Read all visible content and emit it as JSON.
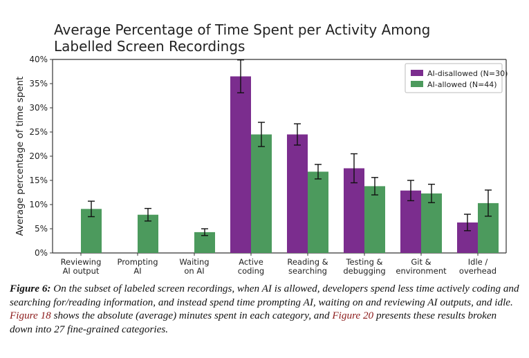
{
  "chart_data": {
    "type": "bar",
    "title": "Average Percentage of Time Spent per Activity Among Labelled Screen Recordings",
    "title_lines": [
      "Average Percentage of Time Spent per Activity Among",
      "Labelled Screen Recordings"
    ],
    "xlabel": "",
    "ylabel": "Average percentage of time spent",
    "ylim": [
      0,
      40
    ],
    "yticks": [
      0,
      5,
      10,
      15,
      20,
      25,
      30,
      35,
      40
    ],
    "ytick_labels": [
      "0%",
      "5%",
      "10%",
      "15%",
      "20%",
      "25%",
      "30%",
      "35%",
      "40%"
    ],
    "grid": false,
    "legend_position": "top-right",
    "categories": [
      [
        "Reviewing",
        "AI output"
      ],
      [
        "Prompting",
        "AI"
      ],
      [
        "Waiting",
        "on AI"
      ],
      [
        "Active",
        "coding"
      ],
      [
        "Reading &",
        "searching"
      ],
      [
        "Testing &",
        "debugging"
      ],
      [
        "Git &",
        "environment"
      ],
      [
        "Idle /",
        "overhead"
      ]
    ],
    "series": [
      {
        "name": "AI-disallowed (N=30)",
        "color": "#7b2d8e",
        "values": [
          0,
          0,
          0,
          36.5,
          24.5,
          17.5,
          12.9,
          6.3
        ],
        "errors": [
          0,
          0,
          0,
          3.4,
          2.2,
          3.0,
          2.1,
          1.7
        ]
      },
      {
        "name": "AI-allowed (N=44)",
        "color": "#4c9a5d",
        "values": [
          9.1,
          7.9,
          4.3,
          24.5,
          16.8,
          13.8,
          12.3,
          10.3
        ],
        "errors": [
          1.6,
          1.3,
          0.7,
          2.5,
          1.5,
          1.8,
          1.9,
          2.7
        ]
      }
    ]
  },
  "caption": {
    "label": "Figure 6:",
    "part1": " On the subset of labeled screen recordings, when AI is allowed, developers spend less time actively coding and searching for/reading information, and instead spend time prompting AI, waiting on and reviewing AI outputs, and idle. ",
    "ref1": "Figure 18",
    "part2": " shows the absolute (average) minutes spent in each category, and ",
    "ref2": "Figure 20",
    "part3": " presents these results broken down into 27 fine-grained categories."
  }
}
